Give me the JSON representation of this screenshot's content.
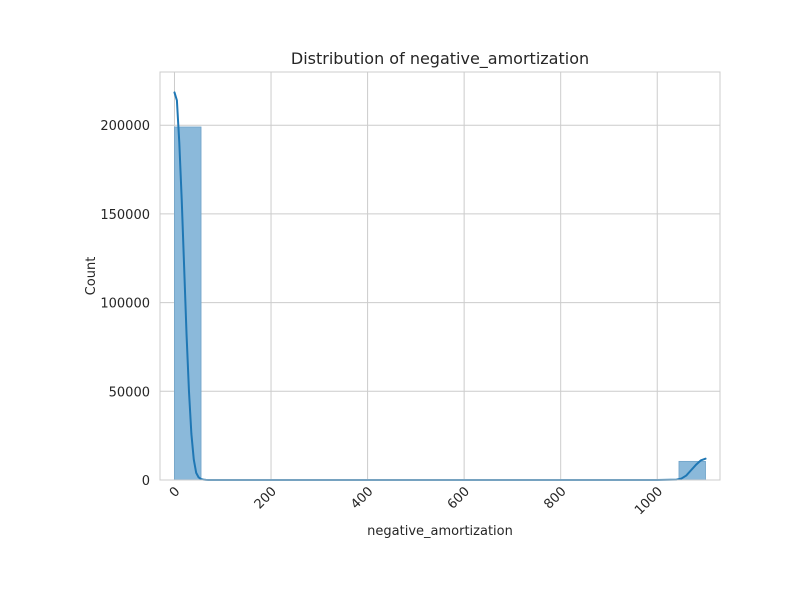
{
  "chart_data": {
    "type": "bar",
    "subtype": "histogram-with-kde",
    "title": "Distribution of negative_amortization",
    "xlabel": "negative_amortization",
    "ylabel": "Count",
    "xlim": [
      -30,
      1130
    ],
    "ylim": [
      0,
      230000
    ],
    "x_ticks": [
      0,
      200,
      400,
      600,
      800,
      1000
    ],
    "x_tick_labels": [
      "0",
      "200",
      "400",
      "600",
      "800",
      "1000"
    ],
    "x_tick_rotation": -45,
    "y_ticks": [
      0,
      50000,
      100000,
      150000,
      200000
    ],
    "y_tick_labels": [
      "0",
      "50000",
      "100000",
      "150000",
      "200000"
    ],
    "grid": true,
    "legend": "none",
    "bins": [
      {
        "x0": 0,
        "x1": 55,
        "count": 199000
      },
      {
        "x0": 1045,
        "x1": 1100,
        "count": 10500
      }
    ],
    "kde": {
      "x": [
        0,
        5,
        10,
        15,
        20,
        25,
        30,
        35,
        40,
        45,
        50,
        55,
        60,
        65,
        70,
        80,
        100,
        200,
        400,
        600,
        800,
        1000,
        1040,
        1050,
        1060,
        1070,
        1080,
        1090,
        1100
      ],
      "y": [
        218500,
        214000,
        190000,
        158000,
        120000,
        82000,
        50000,
        26000,
        11500,
        4000,
        1500,
        500,
        200,
        60,
        10,
        0,
        0,
        0,
        0,
        0,
        0,
        0,
        200,
        800,
        2500,
        5500,
        8500,
        11000,
        12000
      ]
    },
    "colors": {
      "bar_fill": "#8bb9da",
      "bar_stroke": "#6fa3c8",
      "line": "#1f77b4",
      "grid": "#cccccc",
      "frame": "#cccccc"
    }
  }
}
